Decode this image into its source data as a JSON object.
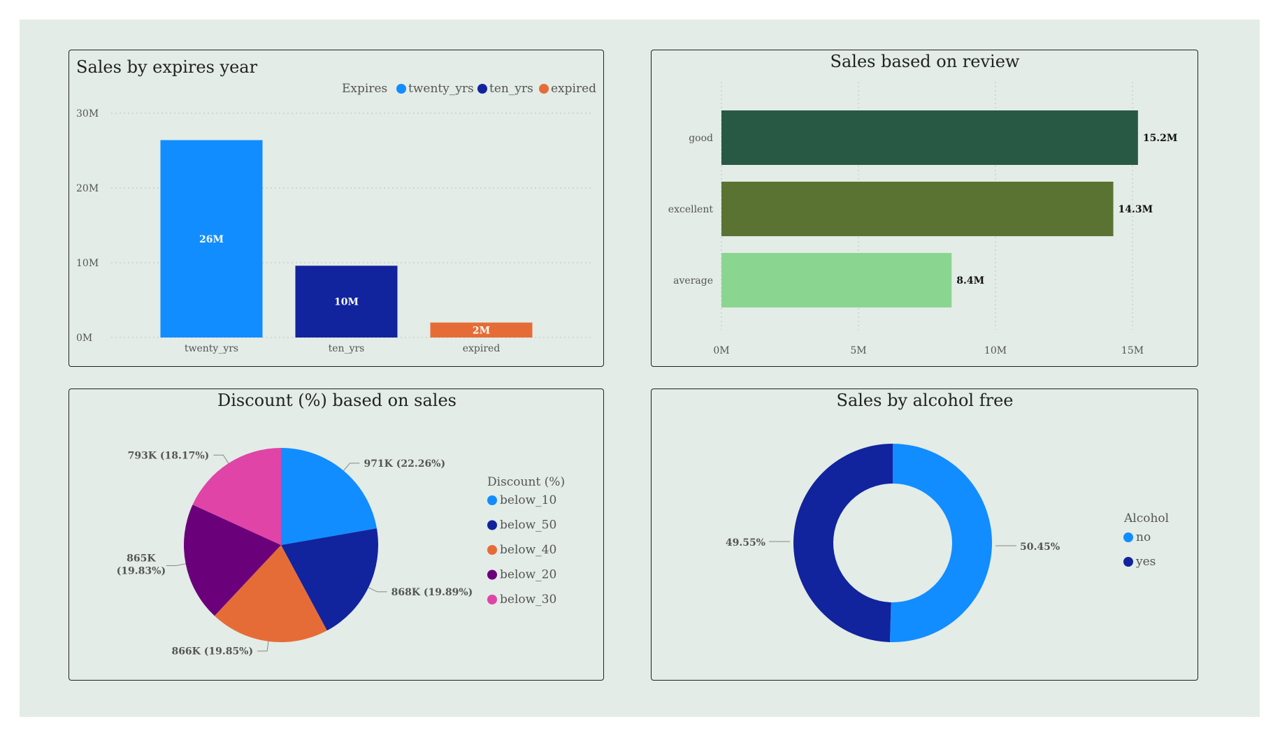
{
  "charts": [
    {
      "id": "expires",
      "type": "bar",
      "title": "Sales by expires year",
      "legend_title": "Expires",
      "legend_placement": "top-right",
      "categories": [
        "twenty_yrs",
        "ten_yrs",
        "expired"
      ],
      "values": [
        26.4,
        9.6,
        2.0
      ],
      "data_labels": [
        "26M",
        "10M",
        "2M"
      ],
      "colors": [
        "#118dff",
        "#12239e",
        "#e66c37"
      ],
      "ylim": [
        0,
        30
      ],
      "yticks": [
        "0M",
        "10M",
        "20M",
        "30M"
      ],
      "grid": true
    },
    {
      "id": "review",
      "type": "bar",
      "orientation": "horizontal",
      "title": "Sales based on review",
      "categories": [
        "good",
        "excellent",
        "average"
      ],
      "values": [
        15.2,
        14.3,
        8.4
      ],
      "data_labels": [
        "15.2M",
        "14.3M",
        "8.4M"
      ],
      "colors": [
        "#285945",
        "#5b7332",
        "#8ad690"
      ],
      "xlim": [
        0,
        16.5
      ],
      "xticks": [
        "0M",
        "5M",
        "10M",
        "15M"
      ],
      "grid": true
    },
    {
      "id": "discount",
      "type": "pie",
      "title": "Discount (%) based on sales",
      "legend_title": "Discount (%)",
      "legend_placement": "right",
      "slices": [
        {
          "label": "below_10",
          "value": 971,
          "data_label": "971K (22.26%)",
          "color": "#118dff"
        },
        {
          "label": "below_50",
          "value": 868,
          "data_label": "868K (19.89%)",
          "color": "#12239e"
        },
        {
          "label": "below_40",
          "value": 866,
          "data_label": "866K (19.85%)",
          "color": "#e66c37"
        },
        {
          "label": "below_20",
          "value": 865,
          "data_label_lines": [
            "865K",
            "(19.83%)"
          ],
          "color": "#6b007b"
        },
        {
          "label": "below_30",
          "value": 793,
          "data_label": "793K (18.17%)",
          "color": "#e044a7"
        }
      ]
    },
    {
      "id": "alcohol",
      "type": "donut",
      "title": "Sales by alcohol free",
      "legend_title": "Alcohol",
      "legend_placement": "right",
      "slices": [
        {
          "label": "no",
          "value": 50.45,
          "data_label": "50.45%",
          "color": "#118dff"
        },
        {
          "label": "yes",
          "value": 49.55,
          "data_label": "49.55%",
          "color": "#12239e"
        }
      ]
    }
  ]
}
